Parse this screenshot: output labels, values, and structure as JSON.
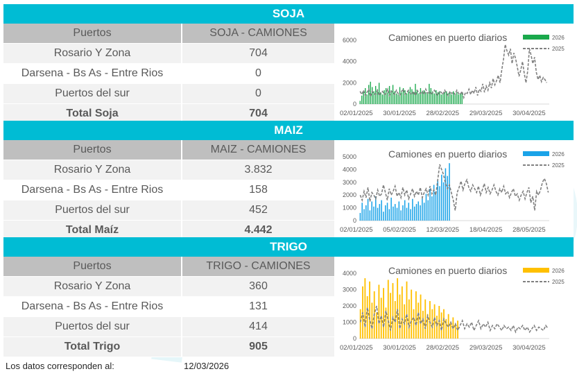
{
  "sections": [
    {
      "id": "soja",
      "title": "SOJA",
      "col_header_1": "Puertos",
      "col_header_2": "SOJA - CAMIONES",
      "rows": [
        {
          "port": "Rosario Y Zona",
          "value": "704"
        },
        {
          "port": "Darsena - Bs As - Entre Rios",
          "value": "0"
        },
        {
          "port": "Puertos del sur",
          "value": "0"
        }
      ],
      "total_label": "Total Soja",
      "total_value": "704",
      "chart": {
        "title": "Camiones en puerto diarios",
        "legend": [
          "2026",
          "2025"
        ],
        "y_ticks": [
          "6000",
          "4000",
          "2000",
          "0"
        ],
        "y_max": 6000,
        "x_ticks": [
          "02/01/2025",
          "30/01/2025",
          "28/02/2025",
          "29/03/2025",
          "30/04/2025"
        ],
        "series_2026_color": "#1aa94c",
        "series_2025_color": "#808080",
        "series_2026": [
          300,
          800,
          1200,
          1500,
          900,
          1800,
          2100,
          1600,
          1200,
          1700,
          1400,
          2000,
          1100,
          900,
          1300,
          1500,
          1100,
          1700,
          1300,
          1800,
          1200,
          1000,
          900,
          1600,
          1100,
          1500,
          1300,
          1000,
          1200,
          1600,
          1400,
          1100,
          1900,
          1300,
          1000,
          1500,
          1200,
          1300,
          1100,
          1000,
          1900,
          1500,
          1200,
          1000,
          1300,
          1100,
          1200,
          900,
          1000,
          1100,
          1200,
          1000,
          1100,
          900,
          1200,
          1000,
          1100,
          900,
          1000,
          1100
        ],
        "series_2025": [
          1200,
          900,
          1300,
          800,
          1100,
          1400,
          700,
          1200,
          1000,
          900,
          1300,
          800,
          1100,
          1200,
          900,
          1000,
          1400,
          800,
          1200,
          1100,
          900,
          1300,
          1000,
          800,
          1200,
          1400,
          900,
          1100,
          1300,
          1000,
          900,
          1200,
          800,
          1300,
          1100,
          1000,
          1200,
          900,
          1400,
          1000,
          1200,
          900,
          1100,
          1300,
          1000,
          800,
          1200,
          1100,
          900,
          1300,
          1000,
          800,
          1200,
          1000,
          1100,
          900,
          1300,
          1000,
          900,
          1200,
          600,
          1100,
          1000,
          1400,
          900,
          1300,
          1000,
          1600,
          800,
          1400,
          1200,
          1900,
          1100,
          1700,
          1300,
          2000,
          1500,
          2400,
          1800,
          2200,
          2700,
          2000,
          3200,
          4200,
          5600,
          5000,
          4600,
          5200,
          3800,
          4800,
          4300,
          3500,
          2600,
          3200,
          4000,
          2900,
          2000,
          3100,
          5200,
          4600,
          3800,
          4400,
          3000,
          2300,
          2700,
          2100,
          2500,
          2300,
          2000
        ],
        "n_2026": 60,
        "n_total": 110
      }
    },
    {
      "id": "maiz",
      "title": "MAIZ",
      "col_header_1": "Puertos",
      "col_header_2": "MAIZ - CAMIONES",
      "rows": [
        {
          "port": "Rosario Y Zona",
          "value": "3.832"
        },
        {
          "port": "Darsena - Bs As - Entre Rios",
          "value": "158"
        },
        {
          "port": "Puertos del sur",
          "value": "452"
        }
      ],
      "total_label": "Total Maíz",
      "total_value": "4.442",
      "chart": {
        "title": "Camiones en puerto diarios",
        "legend": [
          "2026",
          "2025"
        ],
        "y_ticks": [
          "5000",
          "4000",
          "3000",
          "2000",
          "1000",
          "0"
        ],
        "y_max": 5000,
        "x_ticks": [
          "02/01/2025",
          "05/02/2025",
          "12/03/2025",
          "18/04/2025",
          "28/05/2025"
        ],
        "series_2026_color": "#1aa3e8",
        "series_2025_color": "#808080",
        "series_2026": [
          600,
          1400,
          900,
          1200,
          1700,
          800,
          1500,
          1100,
          1900,
          1000,
          1300,
          1600,
          700,
          1200,
          1400,
          900,
          1800,
          1100,
          1300,
          1000,
          1500,
          800,
          1200,
          1600,
          1000,
          1400,
          900,
          1700,
          1100,
          1300,
          1500,
          1200,
          1800,
          1400,
          2100,
          1600,
          2500,
          1900,
          2800,
          2300,
          3200,
          2700,
          3600,
          3000,
          4100,
          3500,
          4500
        ],
        "series_2025": [
          2000,
          1600,
          2300,
          1800,
          2600,
          1500,
          2200,
          2000,
          1700,
          2400,
          1900,
          2100,
          2800,
          2200,
          1600,
          2500,
          2000,
          2300,
          2700,
          1900,
          2200,
          1800,
          2600,
          2000,
          2400,
          1700,
          2100,
          2500,
          1900,
          2300,
          2000,
          2600,
          1800,
          2200,
          2500,
          2000,
          2700,
          2100,
          2400,
          2000,
          3200,
          4400,
          4000,
          3600,
          2900,
          2500,
          2800,
          2200,
          1600,
          800,
          2200,
          2600,
          3100,
          2400,
          2900,
          3200,
          2600,
          2300,
          2800,
          2500,
          2200,
          2700,
          2000,
          2400,
          2900,
          2200,
          2600,
          2100,
          2400,
          2800,
          2300,
          2000,
          2500,
          2200,
          2700,
          2100,
          2300,
          1800,
          2200,
          2500,
          1900,
          2100,
          1600,
          2000,
          2300,
          1700,
          2200,
          2600,
          1400,
          1900,
          800,
          2300,
          2000,
          2400,
          3000,
          3300,
          2900,
          2200
        ],
        "n_2026": 47,
        "n_total": 98
      }
    },
    {
      "id": "trigo",
      "title": "TRIGO",
      "col_header_1": "Puertos",
      "col_header_2": "TRIGO - CAMIONES",
      "rows": [
        {
          "port": "Rosario Y Zona",
          "value": "360"
        },
        {
          "port": "Darsena - Bs As - Entre Rios",
          "value": "131"
        },
        {
          "port": "Puertos del sur",
          "value": "414"
        }
      ],
      "total_label": "Total Trigo",
      "total_value": "905",
      "chart": {
        "title": "Camiones en puerto diarios",
        "legend": [
          "2026",
          "2025"
        ],
        "y_ticks": [
          "4000",
          "3000",
          "2000",
          "1000",
          "0"
        ],
        "y_max": 4000,
        "x_ticks": [
          "02/01/2025",
          "30/01/2025",
          "28/02/2025",
          "29/03/2025",
          "30/04/2025"
        ],
        "series_2026_color": "#ffc000",
        "series_2025_color": "#808080",
        "series_2026": [
          1800,
          3200,
          3700,
          2600,
          3500,
          2200,
          2900,
          1600,
          3300,
          2500,
          3100,
          1900,
          3600,
          2800,
          3400,
          2300,
          3700,
          2700,
          3200,
          2100,
          3500,
          2400,
          3000,
          1800,
          2900,
          2200,
          2700,
          1700,
          2400,
          1500,
          2300,
          1800,
          2100,
          1400,
          2000,
          1600,
          1800,
          1200,
          1500,
          1000,
          1300,
          900,
          1100
        ],
        "series_2025": [
          1000,
          1600,
          700,
          1900,
          1200,
          600,
          1500,
          2000,
          900,
          1400,
          700,
          1700,
          1100,
          500,
          1300,
          1000,
          1800,
          600,
          1200,
          900,
          1500,
          700,
          1100,
          1300,
          800,
          1600,
          900,
          1200,
          600,
          1400,
          1000,
          700,
          1300,
          800,
          1100,
          500,
          1200,
          900,
          700,
          1000,
          600,
          900,
          500,
          800,
          1100,
          600,
          900,
          700,
          1000,
          500,
          800,
          1100,
          600,
          900,
          700,
          1000,
          500,
          800,
          600,
          900,
          700,
          500,
          800,
          600,
          700,
          500,
          800,
          400,
          700,
          600,
          800,
          500,
          700,
          400,
          600,
          800,
          500,
          700,
          600,
          500,
          800,
          600
        ],
        "n_2026": 43,
        "n_total": 82
      }
    }
  ],
  "footer": {
    "label": "Los datos corresponden al:",
    "date": "12/03/2026"
  }
}
